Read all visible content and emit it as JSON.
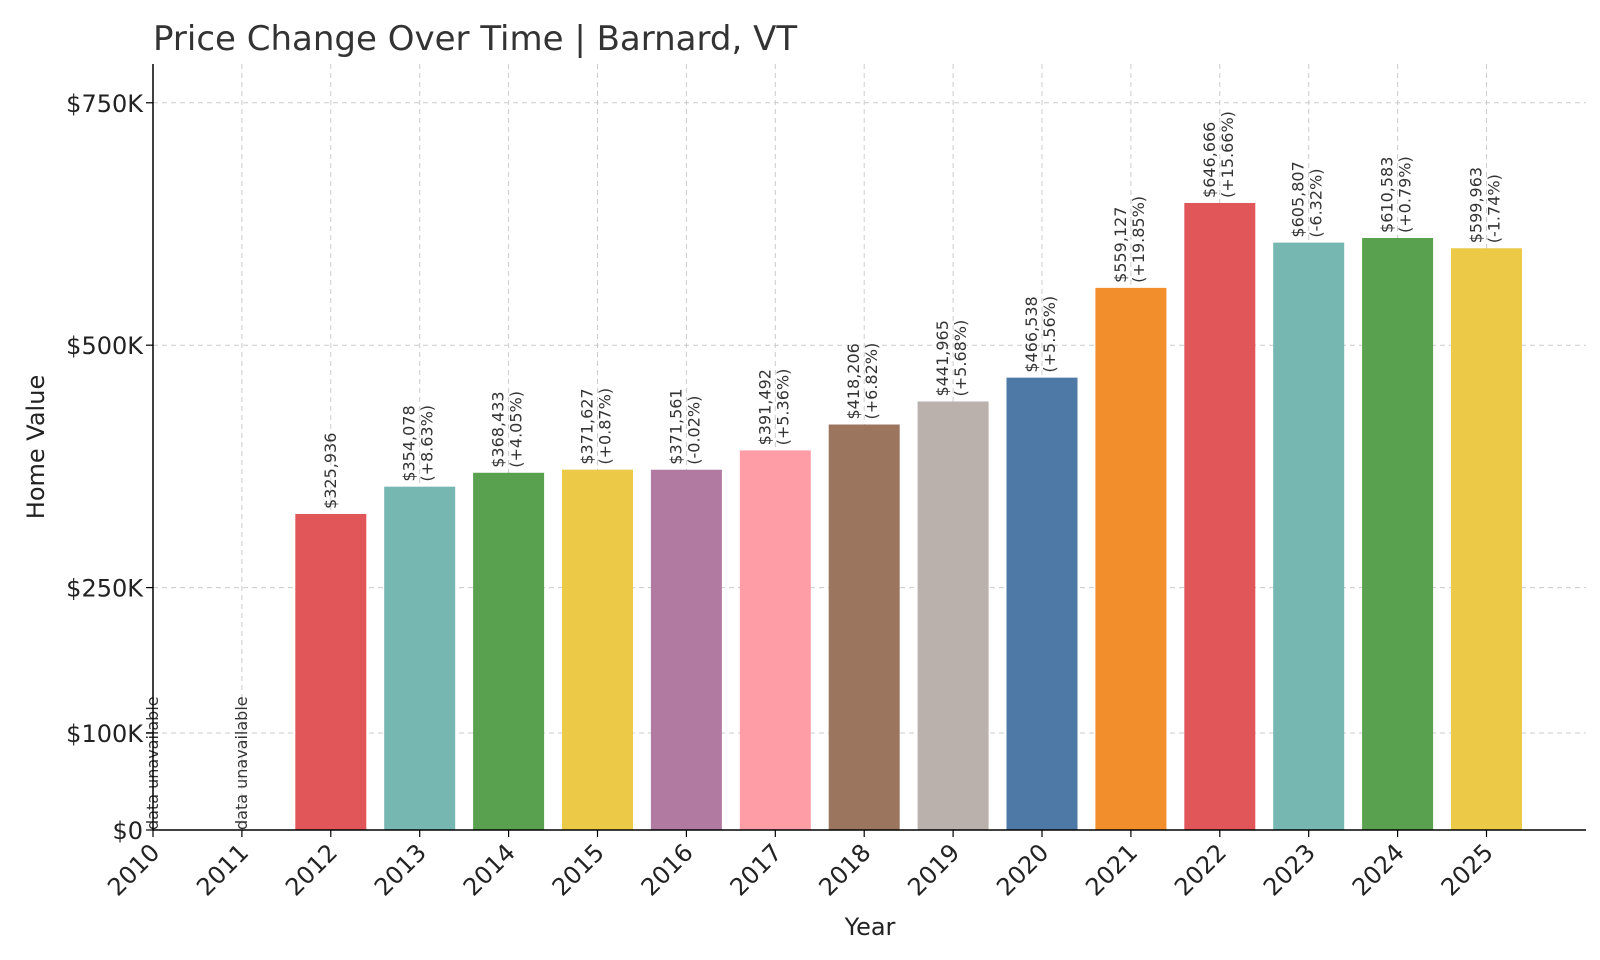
{
  "chart_data": {
    "type": "bar",
    "title": "Price Change Over Time | Barnard, VT",
    "xlabel": "Year",
    "ylabel": "Home Value",
    "ylim": [
      0,
      790000
    ],
    "grid": true,
    "y_ticks": [
      {
        "value": 0,
        "label": "$0"
      },
      {
        "value": 100000,
        "label": "$100K"
      },
      {
        "value": 250000,
        "label": "$250K"
      },
      {
        "value": 500000,
        "label": "$500K"
      },
      {
        "value": 750000,
        "label": "$750K"
      }
    ],
    "categories": [
      "2010",
      "2011",
      "2012",
      "2013",
      "2014",
      "2015",
      "2016",
      "2017",
      "2018",
      "2019",
      "2020",
      "2021",
      "2022",
      "2023",
      "2024",
      "2025"
    ],
    "values": [
      null,
      null,
      325936,
      354078,
      368433,
      371627,
      371561,
      391492,
      418206,
      441965,
      466538,
      559127,
      646666,
      605807,
      610583,
      599963
    ],
    "value_labels": [
      "",
      "",
      "$325,936",
      "$354,078",
      "$368,433",
      "$371,627",
      "$371,561",
      "$391,492",
      "$418,206",
      "$441,965",
      "$466,538",
      "$559,127",
      "$646,666",
      "$605,807",
      "$610,583",
      "$599,963"
    ],
    "change_labels": [
      "",
      "",
      "",
      "(+8.63%)",
      "(+4.05%)",
      "(+0.87%)",
      "(-0.02%)",
      "(+5.36%)",
      "(+6.82%)",
      "(+5.68%)",
      "(+5.56%)",
      "(+19.85%)",
      "(+15.66%)",
      "(-6.32%)",
      "(+0.79%)",
      "(-1.74%)"
    ],
    "unavailable_label": "data unavailable",
    "colors": [
      "#e15759",
      "#76b7b2",
      "#59a14f",
      "#edc948",
      "#b07aa1",
      "#ff9da7",
      "#9c755f",
      "#bab0ac",
      "#4e79a7",
      "#f28e2b",
      "#e15759",
      "#76b7b2",
      "#59a14f",
      "#edc948"
    ]
  }
}
